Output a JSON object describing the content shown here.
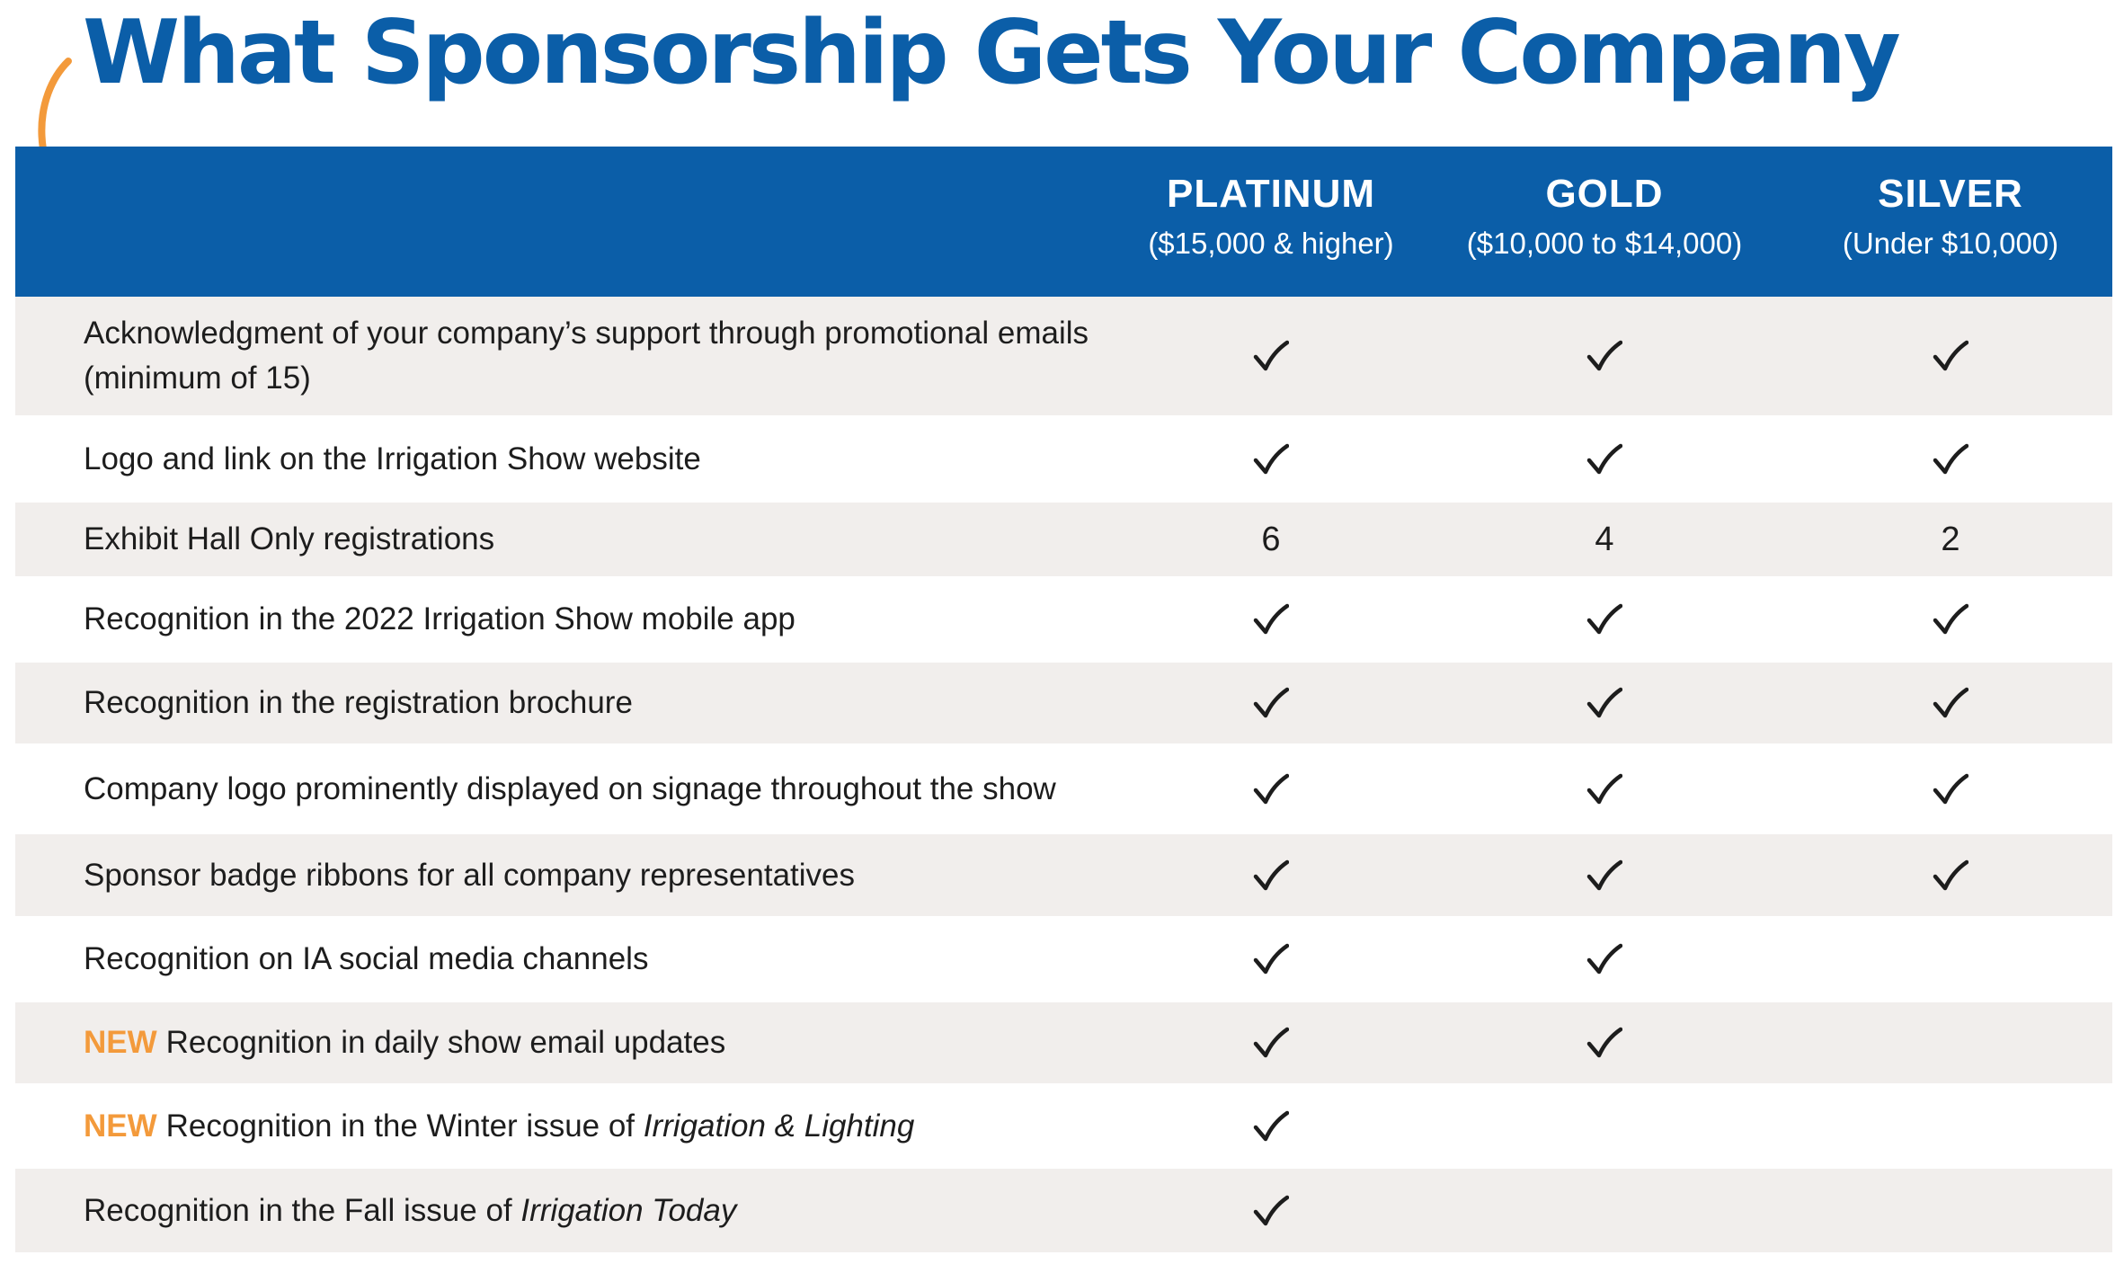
{
  "title": "What Sponsorship Gets Your Company",
  "colors": {
    "brand_blue": "#0b5ea8",
    "accent_orange": "#f39a3b",
    "row_shade": "#f1eeec",
    "text": "#1d1d1d"
  },
  "icons": {
    "arrow": "curved-arrow-icon",
    "included": "checkmark-icon"
  },
  "tiers": [
    {
      "name": "PLATINUM",
      "range": "($15,000 & higher)"
    },
    {
      "name": "GOLD",
      "range": "($10,000 to $14,000)"
    },
    {
      "name": "SILVER",
      "range": "(Under $10,000)"
    }
  ],
  "benefits": [
    {
      "text": "Acknowledgment of your company’s support through promotional emails (minimum of 15)",
      "values": [
        "check",
        "check",
        "check"
      ]
    },
    {
      "text": "Logo and link on the Irrigation Show website",
      "values": [
        "check",
        "check",
        "check"
      ]
    },
    {
      "text": "Exhibit Hall Only registrations",
      "values": [
        "6",
        "4",
        "2"
      ]
    },
    {
      "text": "Recognition in the 2022 Irrigation Show mobile app",
      "values": [
        "check",
        "check",
        "check"
      ]
    },
    {
      "text": "Recognition in the registration brochure",
      "values": [
        "check",
        "check",
        "check"
      ]
    },
    {
      "text": "Company logo prominently displayed on signage throughout the show",
      "values": [
        "check",
        "check",
        "check"
      ]
    },
    {
      "text": "Sponsor badge ribbons for all company representatives",
      "values": [
        "check",
        "check",
        "check"
      ]
    },
    {
      "text": "Recognition on IA social media channels",
      "values": [
        "check",
        "check",
        ""
      ]
    },
    {
      "tag": "NEW",
      "text": "Recognition in daily show email updates",
      "values": [
        "check",
        "check",
        ""
      ]
    },
    {
      "tag": "NEW",
      "text": "Recognition in the Winter issue of ",
      "publication": "Irrigation & Lighting",
      "values": [
        "check",
        "",
        ""
      ]
    },
    {
      "text": "Recognition in the Fall issue of ",
      "publication": "Irrigation Today",
      "values": [
        "check",
        "",
        ""
      ]
    }
  ]
}
